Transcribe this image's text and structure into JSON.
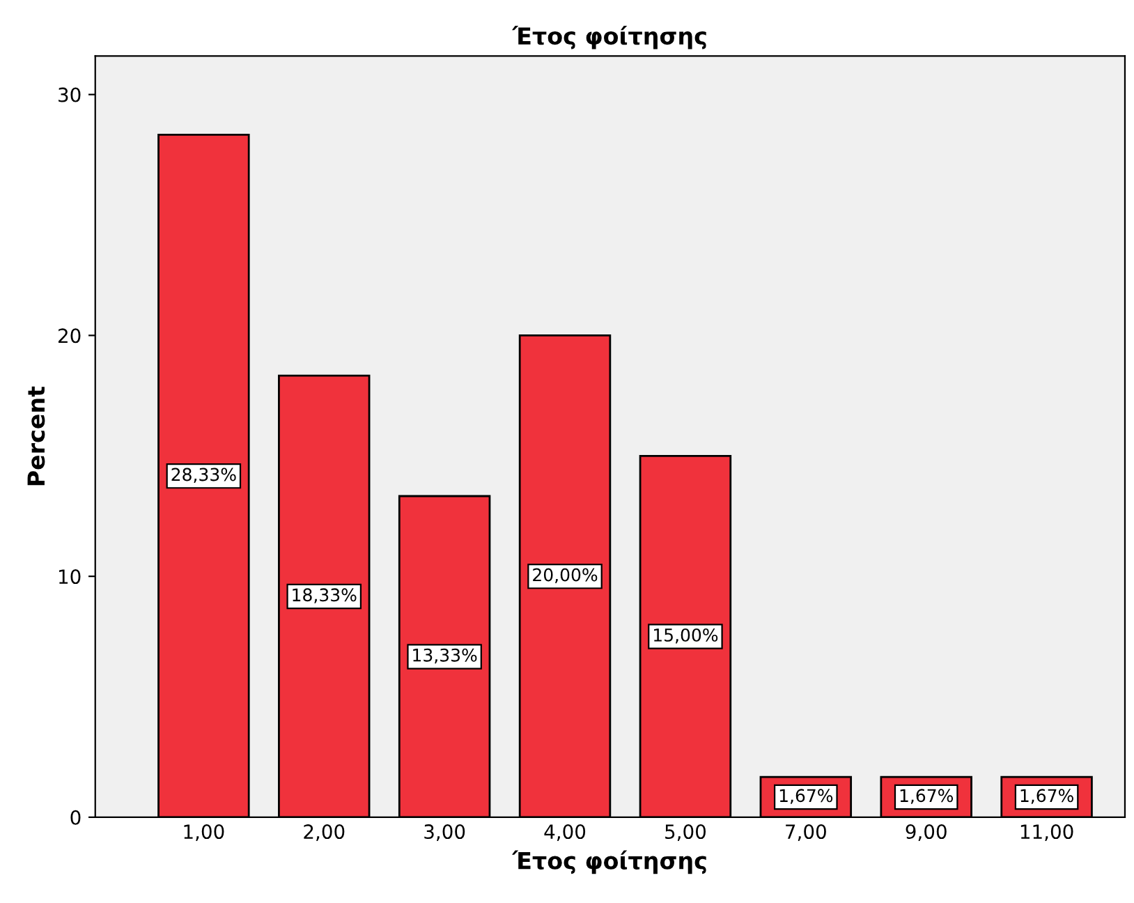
{
  "chart_data": {
    "type": "bar",
    "title": "Έτος φοίτησης",
    "xlabel": "Έτος φοίτησης",
    "ylabel": "Percent",
    "categories": [
      "1,00",
      "2,00",
      "3,00",
      "4,00",
      "5,00",
      "7,00",
      "9,00",
      "11,00"
    ],
    "values": [
      28.33,
      18.33,
      13.33,
      20.0,
      15.0,
      1.67,
      1.67,
      1.67
    ],
    "value_labels": [
      "28,33%",
      "18,33%",
      "13,33%",
      "20,00%",
      "15,00%",
      "1,67%",
      "1,67%",
      "1,67%"
    ],
    "color": "#f0323c",
    "ylim": [
      0,
      31.6
    ],
    "yticks": [
      0,
      10,
      20,
      30
    ],
    "grid": false,
    "legend": false
  }
}
